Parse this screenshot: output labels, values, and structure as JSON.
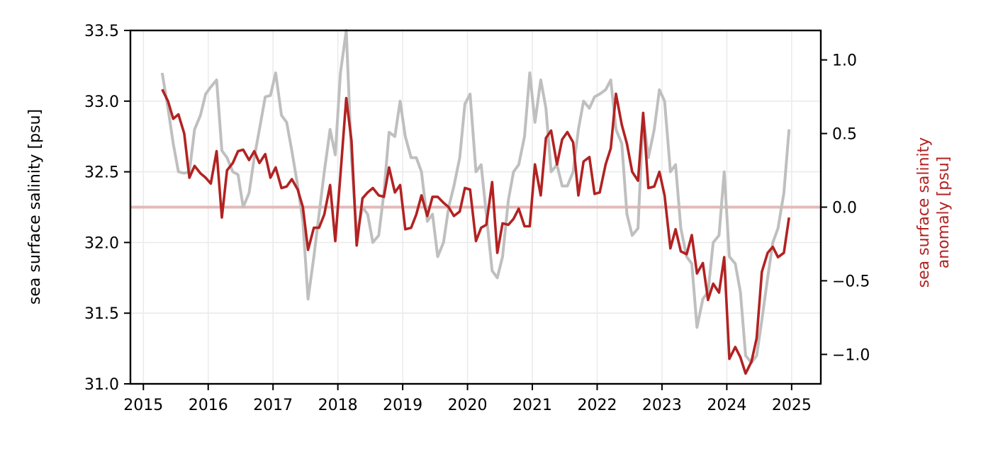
{
  "chart_data": {
    "type": "line",
    "xlabel": "",
    "ylabel_left": "sea surface salinity [psu]",
    "ylabel_right_lines": [
      "sea surface salinity",
      "anomaly [psu]"
    ],
    "xlim": [
      2014.8,
      2025.45
    ],
    "ylim_left": [
      31.0,
      33.5
    ],
    "ylim_right": [
      -1.2,
      1.2
    ],
    "x_ticks": [
      2015,
      2016,
      2017,
      2018,
      2019,
      2020,
      2021,
      2022,
      2023,
      2024,
      2025
    ],
    "y_ticks_left": [
      "31.0",
      "31.5",
      "32.0",
      "32.5",
      "33.0",
      "33.5"
    ],
    "y_ticks_right": [
      "1.0",
      "0.5",
      "0.0",
      "−0.5",
      "−1.0"
    ],
    "grid": true,
    "zero_line_value": 0.0,
    "colors": {
      "salinity": "#bfbfbf",
      "anomaly": "#b22222",
      "zero_line": "#e3b9b9",
      "grid": "#ebebeb",
      "right_label": "#b22222"
    },
    "series": [
      {
        "axis": "left",
        "x": [
          2015.29,
          2015.38,
          2015.46,
          2015.54,
          2015.63,
          2015.71,
          2015.79,
          2015.88,
          2015.96,
          2016.04,
          2016.13,
          2016.21,
          2016.29,
          2016.38,
          2016.46,
          2016.54,
          2016.63,
          2016.71,
          2016.79,
          2016.88,
          2016.96,
          2017.04,
          2017.13,
          2017.21,
          2017.29,
          2017.38,
          2017.46,
          2017.54,
          2017.63,
          2017.71,
          2017.79,
          2017.88,
          2017.96,
          2018.04,
          2018.13,
          2018.21,
          2018.29,
          2018.38,
          2018.46,
          2018.54,
          2018.63,
          2018.71,
          2018.79,
          2018.88,
          2018.96,
          2019.04,
          2019.13,
          2019.21,
          2019.29,
          2019.38,
          2019.46,
          2019.54,
          2019.63,
          2019.71,
          2019.79,
          2019.88,
          2019.96,
          2020.04,
          2020.13,
          2020.21,
          2020.29,
          2020.38,
          2020.46,
          2020.54,
          2020.63,
          2020.71,
          2020.79,
          2020.88,
          2020.96,
          2021.04,
          2021.13,
          2021.21,
          2021.29,
          2021.38,
          2021.46,
          2021.54,
          2021.63,
          2021.71,
          2021.79,
          2021.88,
          2021.96,
          2022.04,
          2022.13,
          2022.21,
          2022.29,
          2022.38,
          2022.46,
          2022.54,
          2022.63,
          2022.71,
          2022.79,
          2022.88,
          2022.96,
          2023.04,
          2023.13,
          2023.21,
          2023.29,
          2023.38,
          2023.46,
          2023.54,
          2023.63,
          2023.71,
          2023.79,
          2023.88,
          2023.96,
          2024.04,
          2024.13,
          2024.21,
          2024.29,
          2024.38,
          2024.46,
          2024.54,
          2024.63,
          2024.71,
          2024.79,
          2024.88,
          2024.96
        ],
        "values": [
          33.2,
          32.95,
          32.7,
          32.5,
          32.49,
          32.5,
          32.8,
          32.9,
          33.05,
          33.1,
          33.15,
          32.65,
          32.6,
          32.5,
          32.48,
          32.25,
          32.35,
          32.6,
          32.8,
          33.03,
          33.04,
          33.2,
          32.9,
          32.85,
          32.65,
          32.4,
          32.15,
          31.6,
          31.9,
          32.2,
          32.5,
          32.8,
          32.62,
          33.2,
          33.5,
          32.6,
          32.05,
          32.25,
          32.2,
          32.0,
          32.05,
          32.35,
          32.78,
          32.75,
          33.0,
          32.75,
          32.6,
          32.6,
          32.5,
          32.15,
          32.2,
          31.9,
          32.0,
          32.25,
          32.4,
          32.6,
          32.98,
          33.05,
          32.5,
          32.55,
          32.2,
          31.8,
          31.75,
          31.9,
          32.3,
          32.5,
          32.55,
          32.75,
          33.2,
          32.85,
          33.15,
          32.95,
          32.5,
          32.55,
          32.4,
          32.4,
          32.5,
          32.8,
          33.0,
          32.95,
          33.03,
          33.05,
          33.08,
          33.15,
          32.8,
          32.7,
          32.2,
          32.05,
          32.1,
          32.9,
          32.6,
          32.8,
          33.08,
          33.0,
          32.5,
          32.55,
          32.1,
          31.9,
          31.85,
          31.4,
          31.6,
          31.65,
          32.0,
          32.05,
          32.5,
          31.9,
          31.85,
          31.65,
          31.2,
          31.15,
          31.2,
          31.45,
          31.75,
          32.0,
          32.1,
          32.35,
          32.8
        ]
      },
      {
        "axis": "right",
        "x": [
          2015.29,
          2015.38,
          2015.46,
          2015.54,
          2015.63,
          2015.71,
          2015.79,
          2015.88,
          2015.96,
          2016.04,
          2016.13,
          2016.21,
          2016.29,
          2016.38,
          2016.46,
          2016.54,
          2016.63,
          2016.71,
          2016.79,
          2016.88,
          2016.96,
          2017.04,
          2017.13,
          2017.21,
          2017.29,
          2017.38,
          2017.46,
          2017.54,
          2017.63,
          2017.71,
          2017.79,
          2017.88,
          2017.96,
          2018.04,
          2018.13,
          2018.21,
          2018.29,
          2018.38,
          2018.46,
          2018.54,
          2018.63,
          2018.71,
          2018.79,
          2018.88,
          2018.96,
          2019.04,
          2019.13,
          2019.21,
          2019.29,
          2019.38,
          2019.46,
          2019.54,
          2019.63,
          2019.71,
          2019.79,
          2019.88,
          2019.96,
          2020.04,
          2020.13,
          2020.21,
          2020.29,
          2020.38,
          2020.46,
          2020.54,
          2020.63,
          2020.71,
          2020.79,
          2020.88,
          2020.96,
          2021.04,
          2021.13,
          2021.21,
          2021.29,
          2021.38,
          2021.46,
          2021.54,
          2021.63,
          2021.71,
          2021.79,
          2021.88,
          2021.96,
          2022.04,
          2022.13,
          2022.21,
          2022.29,
          2022.38,
          2022.46,
          2022.54,
          2022.63,
          2022.71,
          2022.79,
          2022.88,
          2022.96,
          2023.04,
          2023.13,
          2023.21,
          2023.29,
          2023.38,
          2023.46,
          2023.54,
          2023.63,
          2023.71,
          2023.79,
          2023.88,
          2023.96,
          2024.04,
          2024.13,
          2024.21,
          2024.29,
          2024.38,
          2024.46,
          2024.54,
          2024.63,
          2024.71,
          2024.79,
          2024.88,
          2024.96
        ],
        "values": [
          0.8,
          0.72,
          0.6,
          0.63,
          0.5,
          0.2,
          0.28,
          0.23,
          0.2,
          0.16,
          0.38,
          -0.07,
          0.25,
          0.3,
          0.38,
          0.39,
          0.32,
          0.38,
          0.3,
          0.36,
          0.2,
          0.27,
          0.13,
          0.14,
          0.19,
          0.12,
          0.0,
          -0.29,
          -0.14,
          -0.14,
          -0.05,
          0.15,
          -0.23,
          0.22,
          0.74,
          0.45,
          -0.26,
          0.06,
          0.1,
          0.13,
          0.08,
          0.07,
          0.27,
          0.1,
          0.15,
          -0.15,
          -0.14,
          -0.05,
          0.08,
          -0.06,
          0.07,
          0.07,
          0.03,
          0.0,
          -0.06,
          -0.03,
          0.13,
          0.12,
          -0.23,
          -0.14,
          -0.12,
          0.17,
          -0.31,
          -0.11,
          -0.12,
          -0.08,
          -0.01,
          -0.13,
          -0.13,
          0.29,
          0.08,
          0.47,
          0.52,
          0.29,
          0.46,
          0.51,
          0.44,
          0.08,
          0.31,
          0.34,
          0.09,
          0.1,
          0.29,
          0.4,
          0.77,
          0.56,
          0.43,
          0.24,
          0.18,
          0.64,
          0.13,
          0.14,
          0.24,
          0.08,
          -0.28,
          -0.15,
          -0.3,
          -0.32,
          -0.19,
          -0.45,
          -0.38,
          -0.63,
          -0.52,
          -0.58,
          -0.34,
          -1.03,
          -0.95,
          -1.02,
          -1.13,
          -1.05,
          -0.89,
          -0.44,
          -0.31,
          -0.27,
          -0.34,
          -0.31,
          -0.07
        ]
      }
    ]
  }
}
